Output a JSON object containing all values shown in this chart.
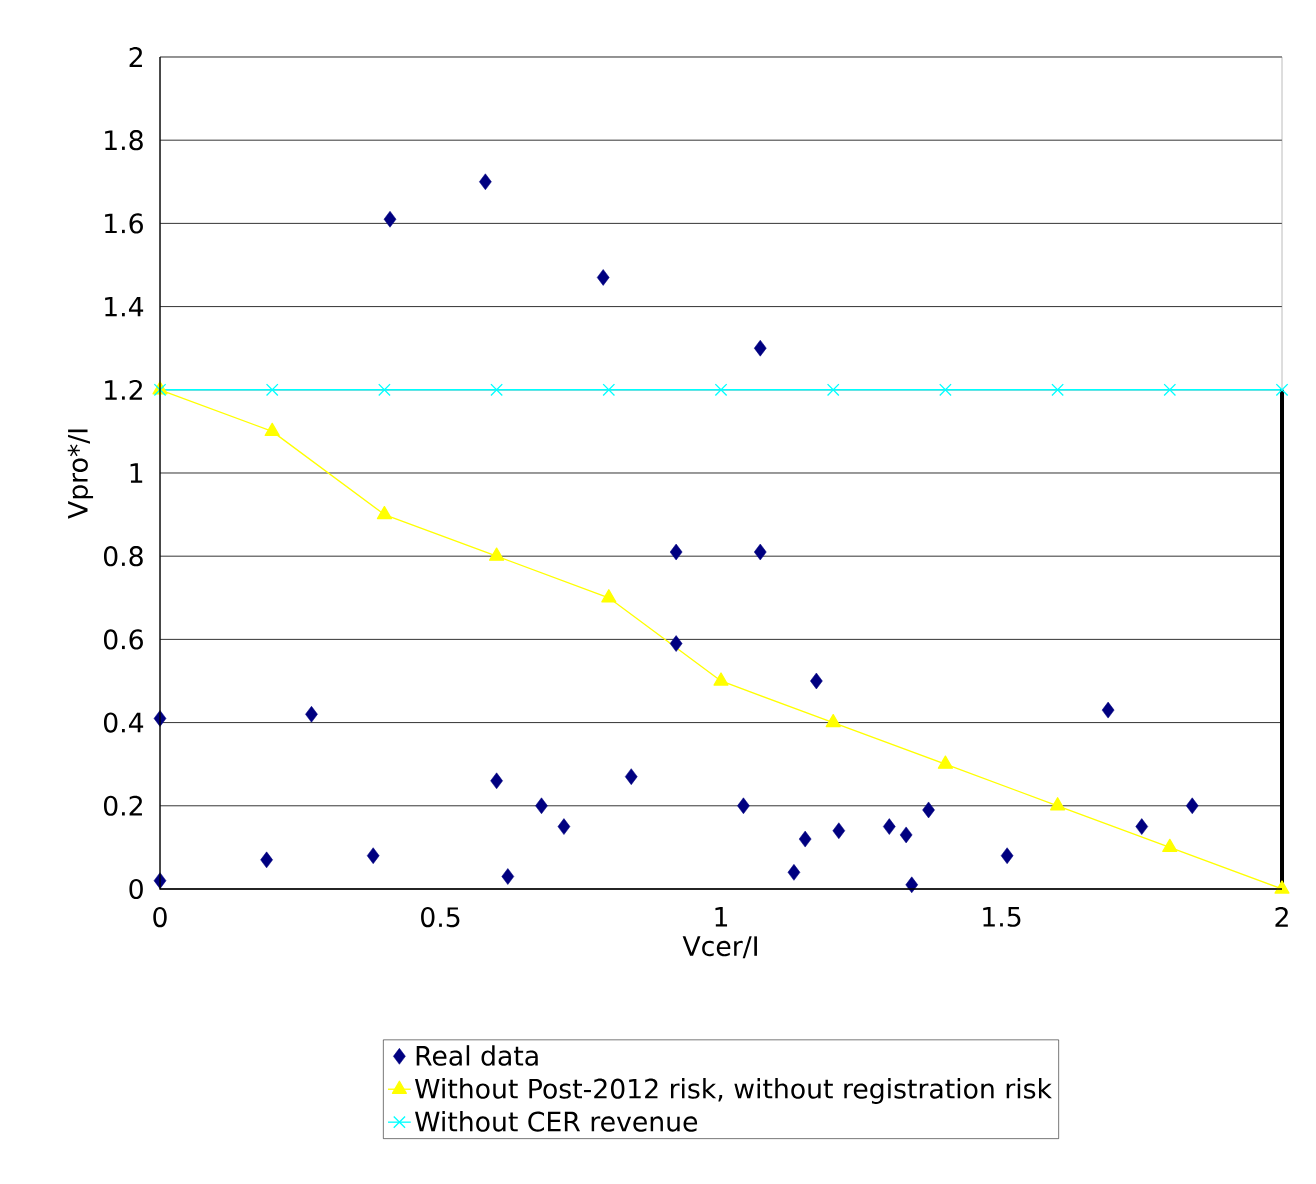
{
  "chart_data": {
    "type": "scatter",
    "xlabel": "Vcer/I",
    "ylabel": "Vpro*/I",
    "xlim": [
      0,
      2
    ],
    "ylim": [
      0,
      2
    ],
    "xticks": [
      0,
      0.5,
      1,
      1.5,
      2
    ],
    "yticks": [
      0,
      0.2,
      0.4,
      0.6,
      0.8,
      1,
      1.2,
      1.4,
      1.6,
      1.8,
      2
    ],
    "grid": "y",
    "legend": "bottom",
    "series": [
      {
        "name": "Real data",
        "marker": "diamond",
        "color": "#000080",
        "x": [
          0,
          0,
          0.19,
          0.27,
          0.38,
          0.41,
          0.58,
          0.6,
          0.62,
          0.68,
          0.72,
          0.79,
          0.84,
          0.92,
          0.92,
          1.04,
          1.07,
          1.07,
          1.13,
          1.15,
          1.17,
          1.21,
          1.3,
          1.33,
          1.34,
          1.37,
          1.51,
          1.69,
          1.75,
          1.84
        ],
        "values": [
          0.02,
          0.41,
          0.07,
          0.42,
          0.08,
          1.61,
          1.7,
          0.26,
          0.03,
          0.2,
          0.15,
          1.47,
          0.27,
          0.81,
          0.59,
          0.2,
          1.3,
          0.81,
          0.04,
          0.12,
          0.5,
          0.14,
          0.15,
          0.13,
          0.01,
          0.19,
          0.08,
          0.43,
          0.15,
          0.2
        ]
      },
      {
        "name": "Without Post-2012 risk, without registration risk",
        "type": "line",
        "marker": "triangle",
        "line_style": "solid",
        "color": "#ffff00",
        "x": [
          0,
          0.2,
          0.4,
          0.6,
          0.8,
          1,
          1.2,
          1.4,
          1.6,
          1.8,
          2
        ],
        "values": [
          1.2,
          1.1,
          0.9,
          0.8,
          0.7,
          0.5,
          0.4,
          0.3,
          0.2,
          0.1,
          0
        ]
      },
      {
        "name": "Without CER revenue",
        "type": "line",
        "marker": "cross",
        "line_style": "solid",
        "color": "#00ffff",
        "x": [
          0,
          0.2,
          0.4,
          0.6,
          0.8,
          1,
          1.2,
          1.4,
          1.6,
          1.8,
          2
        ],
        "values": [
          1.2,
          1.2,
          1.2,
          1.2,
          1.2,
          1.2,
          1.2,
          1.2,
          1.2,
          1.2,
          1.2
        ]
      },
      {
        "type": "line",
        "marker": "none",
        "line_style": "solid",
        "color": "#000000",
        "x": [
          2,
          2
        ],
        "values": [
          0,
          1.2
        ]
      }
    ]
  }
}
